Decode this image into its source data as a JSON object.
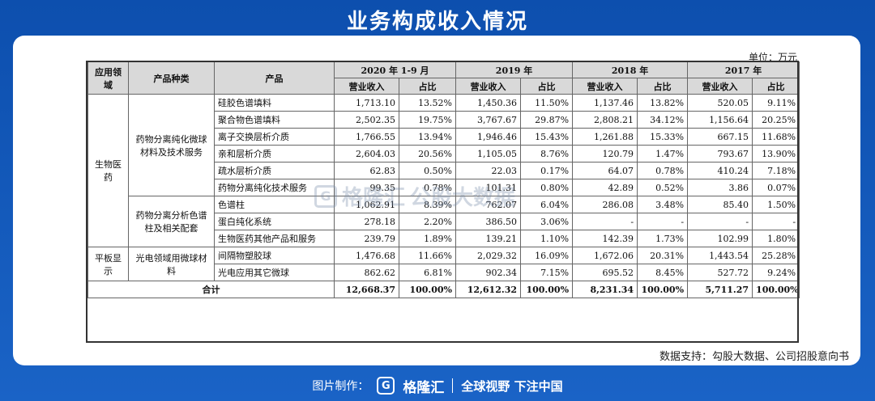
{
  "title": "业务构成收入情况",
  "unit": "单位：万元",
  "header": {
    "domain": "应用领域",
    "category": "产品种类",
    "product": "产品",
    "periods": [
      "2020 年 1-9 月",
      "2019 年",
      "2018 年",
      "2017 年"
    ],
    "revenue": "营业收入",
    "ratio": "占比"
  },
  "groups": [
    {
      "label": "生物医药"
    },
    {
      "label": "平板显示"
    }
  ],
  "categories": [
    {
      "label": "药物分离纯化微球材料及技术服务"
    },
    {
      "label": "药物分离分析色谱柱及相关配套"
    },
    {
      "label": "光电领域用微球材料"
    }
  ],
  "rows": [
    {
      "product": "硅胶色谱填料",
      "v": [
        "1,713.10",
        "13.52%",
        "1,450.36",
        "11.50%",
        "1,137.46",
        "13.82%",
        "520.05",
        "9.11%"
      ]
    },
    {
      "product": "聚合物色谱填料",
      "v": [
        "2,502.35",
        "19.75%",
        "3,767.67",
        "29.87%",
        "2,808.21",
        "34.12%",
        "1,156.64",
        "20.25%"
      ]
    },
    {
      "product": "离子交换层析介质",
      "v": [
        "1,766.55",
        "13.94%",
        "1,946.46",
        "15.43%",
        "1,261.88",
        "15.33%",
        "667.15",
        "11.68%"
      ]
    },
    {
      "product": "亲和层析介质",
      "v": [
        "2,604.03",
        "20.56%",
        "1,105.05",
        "8.76%",
        "120.79",
        "1.47%",
        "793.67",
        "13.90%"
      ]
    },
    {
      "product": "疏水层析介质",
      "v": [
        "62.83",
        "0.50%",
        "22.03",
        "0.17%",
        "64.07",
        "0.78%",
        "410.24",
        "7.18%"
      ]
    },
    {
      "product": "药物分离纯化技术服务",
      "v": [
        "99.35",
        "0.78%",
        "101.31",
        "0.80%",
        "42.89",
        "0.52%",
        "3.86",
        "0.07%"
      ]
    },
    {
      "product": "色谱柱",
      "v": [
        "1,062.91",
        "8.39%",
        "762.07",
        "6.04%",
        "286.08",
        "3.48%",
        "85.40",
        "1.50%"
      ]
    },
    {
      "product": "蛋白纯化系统",
      "v": [
        "278.18",
        "2.20%",
        "386.50",
        "3.06%",
        "-",
        "-",
        "-",
        "-"
      ]
    },
    {
      "product": "生物医药其他产品和服务",
      "v": [
        "239.79",
        "1.89%",
        "139.21",
        "1.10%",
        "142.39",
        "1.73%",
        "102.99",
        "1.80%"
      ]
    },
    {
      "product": "间隔物塑胶球",
      "v": [
        "1,476.68",
        "11.66%",
        "2,029.32",
        "16.09%",
        "1,672.06",
        "20.31%",
        "1,443.54",
        "25.28%"
      ]
    },
    {
      "product": "光电应用其它微球",
      "v": [
        "862.62",
        "6.81%",
        "902.34",
        "7.15%",
        "695.52",
        "8.45%",
        "527.72",
        "9.24%"
      ]
    }
  ],
  "total": {
    "label": "合计",
    "v": [
      "12,668.37",
      "100.00%",
      "12,612.32",
      "100.00%",
      "8,231.34",
      "100.00%",
      "5,711.27",
      "100.00%"
    ]
  },
  "watermark": {
    "logo": "G",
    "brand": "格隆汇",
    "text": "公股大数据"
  },
  "source": "数据支持：勾股大数据、公司招股意向书",
  "footer": {
    "made_by": "图片制作：",
    "logo": "G",
    "brand": "格隆汇",
    "slogan": "全球视野 下注中国"
  }
}
